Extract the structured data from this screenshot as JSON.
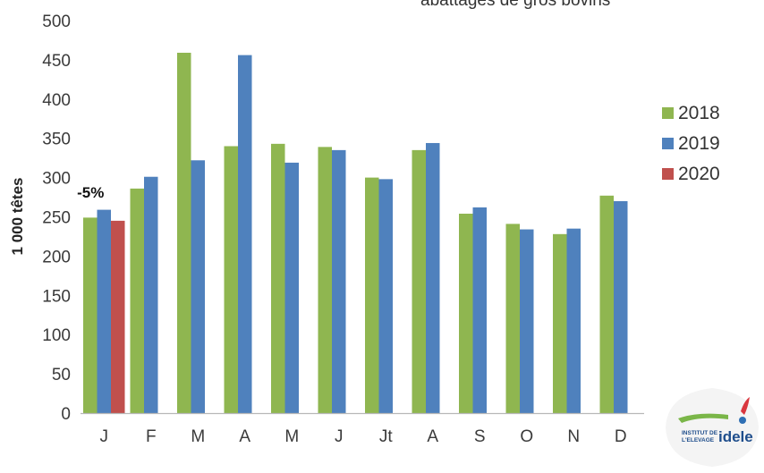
{
  "title_fragment": "abattages de gros bovins",
  "chart_data": {
    "type": "bar",
    "categories": [
      "J",
      "F",
      "M",
      "A",
      "M",
      "J",
      "Jt",
      "A",
      "S",
      "O",
      "N",
      "D"
    ],
    "series": [
      {
        "name": "2018",
        "color": "#8fb650",
        "values": [
          249,
          286,
          459,
          340,
          343,
          339,
          300,
          335,
          254,
          241,
          228,
          277
        ]
      },
      {
        "name": "2019",
        "color": "#4f81bd",
        "values": [
          259,
          301,
          322,
          456,
          319,
          335,
          298,
          344,
          262,
          234,
          235,
          270
        ]
      },
      {
        "name": "2020",
        "color": "#c0504d",
        "values": [
          245,
          null,
          null,
          null,
          null,
          null,
          null,
          null,
          null,
          null,
          null,
          null
        ]
      }
    ],
    "ylabel": "1 000 têtes",
    "xlabel": "",
    "ylim": [
      0,
      500
    ],
    "yticks": [
      0,
      50,
      100,
      150,
      200,
      250,
      300,
      350,
      400,
      450,
      500
    ],
    "grid": false,
    "legend_position": "right",
    "annotations": [
      {
        "text": "-5%",
        "category": "J"
      }
    ]
  },
  "logo": {
    "line1": "INSTITUT DE",
    "line2": "L'ELEVAGE",
    "brand": "idele"
  }
}
